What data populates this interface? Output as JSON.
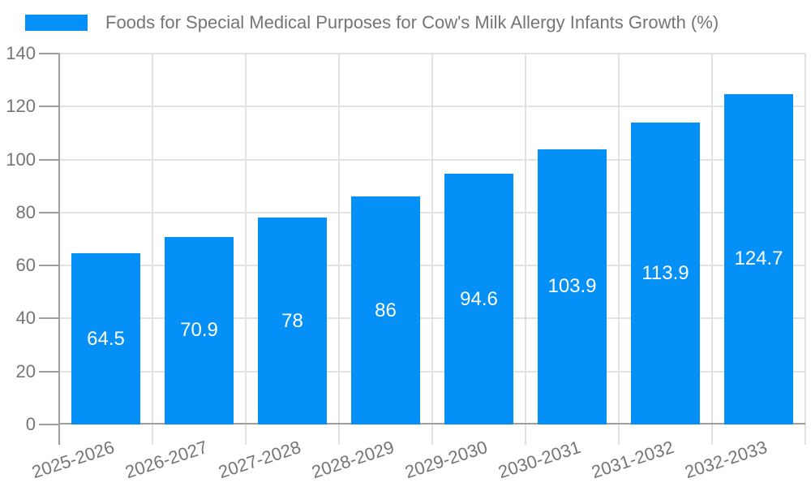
{
  "legend": {
    "position": "top-left"
  },
  "chart_data": {
    "type": "bar",
    "title": "Foods for Special Medical Purposes for Cow's Milk Allergy Infants Growth (%)",
    "categories": [
      "2025-2026",
      "2026-2027",
      "2027-2028",
      "2028-2029",
      "2029-2030",
      "2030-2031",
      "2031-2032",
      "2032-2033"
    ],
    "series": [
      {
        "name": "Foods for Special Medical Purposes for Cow's Milk Allergy Infants Growth (%)",
        "values": [
          64.5,
          70.9,
          78,
          86,
          94.6,
          103.9,
          113.9,
          124.7
        ]
      }
    ],
    "value_labels": [
      "64.5",
      "70.9",
      "78",
      "86",
      "94.6",
      "103.9",
      "113.9",
      "124.7"
    ],
    "xlabel": "",
    "ylabel": "",
    "ylim": [
      0,
      140
    ],
    "ytick_step": 20,
    "yticks": [
      "0",
      "20",
      "40",
      "60",
      "80",
      "100",
      "120",
      "140"
    ],
    "grid": "on",
    "legend_position": "top-left",
    "value_label_position": "inside-center",
    "colors": {
      "bar": "#0590f8",
      "axis": "#9e9e9e",
      "grid": "#e2e2e2",
      "text": "#757575",
      "value_text": "#ffffff",
      "background": "#ffffff"
    }
  }
}
